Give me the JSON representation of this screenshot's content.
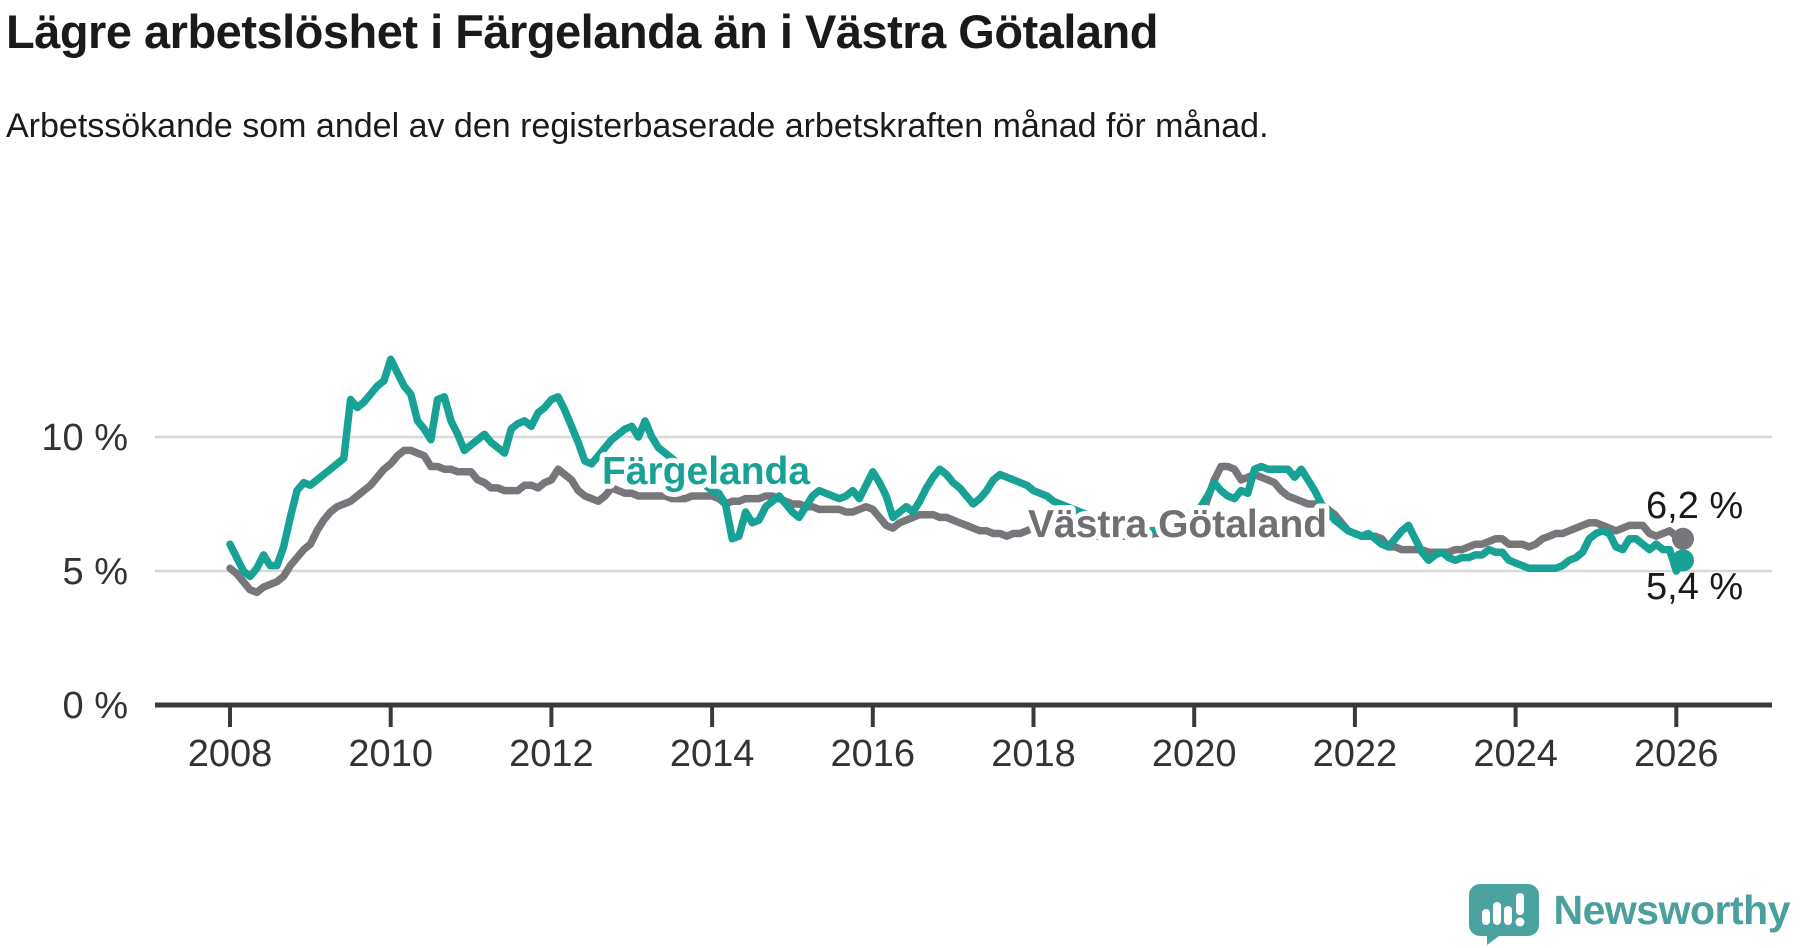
{
  "header": {
    "title": "Lägre arbetslöshet i Färgelanda än i Västra Götaland",
    "subtitle": "Arbetssökande som andel av den registerbaserade arbetskraften månad för månad."
  },
  "chart_data": {
    "type": "line",
    "title": "Lägre arbetslöshet i Färgelanda än i Västra Götaland",
    "subtitle": "Arbetssökande som andel av den registerbaserade arbetskraften månad för månad.",
    "unit": "%",
    "x_start_year": 2008,
    "x_start_month": 1,
    "x_step": "monthly",
    "x_end": "2026-02",
    "x_ticks": [
      2008,
      2010,
      2012,
      2014,
      2016,
      2018,
      2020,
      2022,
      2024,
      2026
    ],
    "y_ticks": [
      {
        "value": 0,
        "label": "0 %"
      },
      {
        "value": 5,
        "label": "5 %"
      },
      {
        "value": 10,
        "label": "10 %"
      }
    ],
    "ylim": [
      0,
      13.8
    ],
    "grid": "horizontal",
    "legend": "inline-labels",
    "colors": {
      "fargelanda": "#17a295",
      "vastra_gotaland": "#76767b",
      "grid": "#d9d9d9",
      "axis": "#3a3a3a",
      "text": "#333333",
      "annotation": "#1a1a1a"
    },
    "series": [
      {
        "name": "Västra Götaland",
        "color": "#76767b",
        "end_label": "6,2 %",
        "end_value": 6.2,
        "values": [
          5.1,
          4.9,
          4.6,
          4.3,
          4.2,
          4.4,
          4.5,
          4.6,
          4.8,
          5.2,
          5.5,
          5.8,
          6.0,
          6.5,
          6.9,
          7.2,
          7.4,
          7.5,
          7.6,
          7.8,
          8.0,
          8.2,
          8.5,
          8.8,
          9.0,
          9.3,
          9.5,
          9.5,
          9.4,
          9.3,
          8.9,
          8.9,
          8.8,
          8.8,
          8.7,
          8.7,
          8.7,
          8.4,
          8.3,
          8.1,
          8.1,
          8.0,
          8.0,
          8.0,
          8.2,
          8.2,
          8.1,
          8.3,
          8.4,
          8.8,
          8.6,
          8.4,
          8.0,
          7.8,
          7.7,
          7.6,
          7.8,
          8.1,
          8.0,
          7.9,
          7.9,
          7.8,
          7.8,
          7.8,
          7.8,
          7.8,
          7.7,
          7.7,
          7.7,
          7.8,
          7.8,
          7.8,
          7.8,
          7.7,
          7.5,
          7.6,
          7.6,
          7.7,
          7.7,
          7.7,
          7.8,
          7.8,
          7.7,
          7.6,
          7.5,
          7.5,
          7.4,
          7.4,
          7.3,
          7.3,
          7.3,
          7.3,
          7.2,
          7.2,
          7.3,
          7.4,
          7.3,
          7.0,
          6.7,
          6.6,
          6.8,
          6.9,
          7.0,
          7.1,
          7.1,
          7.1,
          7.0,
          7.0,
          6.9,
          6.8,
          6.7,
          6.6,
          6.5,
          6.5,
          6.4,
          6.4,
          6.3,
          6.4,
          6.4,
          6.5,
          6.6,
          6.6,
          6.6,
          6.5,
          6.5,
          6.5,
          6.4,
          6.4,
          6.4,
          6.3,
          6.3,
          6.3,
          6.3,
          6.3,
          6.3,
          6.3,
          6.3,
          6.3,
          6.4,
          6.4,
          6.5,
          6.5,
          6.6,
          6.6,
          6.7,
          6.9,
          7.7,
          8.4,
          8.9,
          8.9,
          8.8,
          8.4,
          8.5,
          8.6,
          8.5,
          8.4,
          8.3,
          8.0,
          7.8,
          7.7,
          7.6,
          7.5,
          7.5,
          7.4,
          7.3,
          7.1,
          6.8,
          6.5,
          6.4,
          6.3,
          6.3,
          6.3,
          6.2,
          5.9,
          5.9,
          5.8,
          5.8,
          5.8,
          5.8,
          5.7,
          5.7,
          5.7,
          5.7,
          5.8,
          5.8,
          5.9,
          6.0,
          6.0,
          6.1,
          6.2,
          6.2,
          6.0,
          6.0,
          6.0,
          5.9,
          6.0,
          6.2,
          6.3,
          6.4,
          6.4,
          6.5,
          6.6,
          6.7,
          6.8,
          6.8,
          6.7,
          6.6,
          6.5,
          6.6,
          6.7,
          6.7,
          6.7,
          6.4,
          6.3,
          6.4,
          6.5,
          6.3,
          6.2
        ]
      },
      {
        "name": "Färgelanda",
        "color": "#17a295",
        "end_label": "5,4 %",
        "end_value": 5.4,
        "values": [
          6.0,
          5.5,
          5.0,
          4.8,
          5.1,
          5.6,
          5.2,
          5.2,
          5.9,
          7.0,
          8.0,
          8.3,
          8.2,
          8.4,
          8.6,
          8.8,
          9.0,
          9.2,
          11.4,
          11.1,
          11.3,
          11.6,
          11.9,
          12.1,
          12.9,
          12.4,
          11.9,
          11.6,
          10.6,
          10.3,
          9.9,
          11.4,
          11.5,
          10.6,
          10.1,
          9.5,
          9.7,
          9.9,
          10.1,
          9.8,
          9.6,
          9.4,
          10.3,
          10.5,
          10.6,
          10.4,
          10.9,
          11.1,
          11.4,
          11.5,
          11.0,
          10.4,
          9.8,
          9.1,
          9.0,
          9.3,
          9.6,
          9.9,
          10.1,
          10.3,
          10.4,
          10.0,
          10.6,
          10.0,
          9.6,
          9.4,
          9.2,
          9.0,
          8.8,
          8.6,
          8.4,
          8.2,
          8.0,
          7.9,
          7.5,
          6.2,
          6.3,
          7.2,
          6.8,
          6.9,
          7.4,
          7.6,
          7.8,
          7.5,
          7.2,
          7.0,
          7.4,
          7.8,
          8.0,
          7.9,
          7.8,
          7.7,
          7.8,
          8.0,
          7.7,
          8.2,
          8.7,
          8.3,
          7.8,
          7.0,
          7.2,
          7.4,
          7.2,
          7.6,
          8.1,
          8.5,
          8.8,
          8.6,
          8.3,
          8.1,
          7.8,
          7.5,
          7.7,
          8.0,
          8.4,
          8.6,
          8.5,
          8.4,
          8.3,
          8.2,
          8.0,
          7.9,
          7.8,
          7.6,
          7.5,
          7.4,
          7.3,
          7.2,
          7.1,
          7.0,
          6.9,
          6.9,
          6.8,
          6.8,
          6.7,
          6.6,
          6.5,
          6.5,
          6.5,
          6.6,
          6.6,
          6.7,
          6.8,
          7.0,
          7.2,
          7.4,
          7.8,
          8.3,
          8.0,
          7.8,
          7.7,
          8.0,
          7.9,
          8.8,
          8.9,
          8.8,
          8.8,
          8.8,
          8.8,
          8.5,
          8.8,
          8.4,
          8.0,
          7.5,
          7.2,
          6.9,
          6.7,
          6.5,
          6.4,
          6.3,
          6.4,
          6.2,
          6.0,
          5.9,
          6.2,
          6.5,
          6.7,
          6.2,
          5.7,
          5.4,
          5.6,
          5.7,
          5.5,
          5.4,
          5.5,
          5.5,
          5.6,
          5.6,
          5.8,
          5.7,
          5.7,
          5.4,
          5.3,
          5.2,
          5.1,
          5.1,
          5.1,
          5.1,
          5.1,
          5.2,
          5.4,
          5.5,
          5.7,
          6.2,
          6.4,
          6.5,
          6.4,
          5.9,
          5.8,
          6.2,
          6.2,
          6.0,
          5.8,
          6.0,
          5.8,
          5.8,
          5.0,
          5.4
        ]
      }
    ],
    "series_labels": [
      {
        "text": "Färgelanda",
        "color": "#17a295"
      },
      {
        "text": "Västra Götaland",
        "color": "#6f6f74"
      }
    ]
  },
  "footer": {
    "brand": "Newsworthy"
  }
}
